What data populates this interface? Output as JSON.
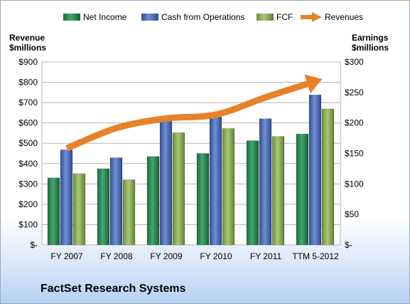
{
  "chart_data": {
    "type": "bar",
    "title": "FactSet Research Systems",
    "categories": [
      "FY 2007",
      "FY 2008",
      "FY 2009",
      "FY 2010",
      "FY 2011",
      "TTM 5-2012"
    ],
    "left_axis": {
      "label_line1": "Revenue",
      "label_line2": "$millions",
      "ylim": [
        0,
        900
      ],
      "ticks": [
        "$-",
        "$100",
        "$200",
        "$300",
        "$400",
        "$500",
        "$600",
        "$700",
        "$800",
        "$900"
      ]
    },
    "right_axis": {
      "label_line1": "Earnings",
      "label_line2": "$millions",
      "ylim": [
        0,
        300
      ],
      "ticks": [
        "$-",
        "$50",
        "$100",
        "$150",
        "$200",
        "$250",
        "$300"
      ]
    },
    "series": [
      {
        "name": "Net Income",
        "axis": "right",
        "kind": "bar",
        "color": "#2e8b57",
        "values": [
          110,
          125,
          145,
          150,
          171,
          182
        ]
      },
      {
        "name": "Cash from Operations",
        "axis": "right",
        "kind": "bar",
        "color": "#4f6fbf",
        "values": [
          156,
          143,
          208,
          210,
          207,
          246
        ]
      },
      {
        "name": "FCF",
        "axis": "right",
        "kind": "bar",
        "color": "#8fb35a",
        "values": [
          117,
          107,
          184,
          191,
          178,
          223
        ]
      },
      {
        "name": "Revenues",
        "axis": "left",
        "kind": "arrow-line",
        "color": "#e8822a",
        "values": [
          475,
          575,
          622,
          641,
          726,
          805
        ]
      }
    ],
    "grid": true,
    "legend_position": "top"
  }
}
